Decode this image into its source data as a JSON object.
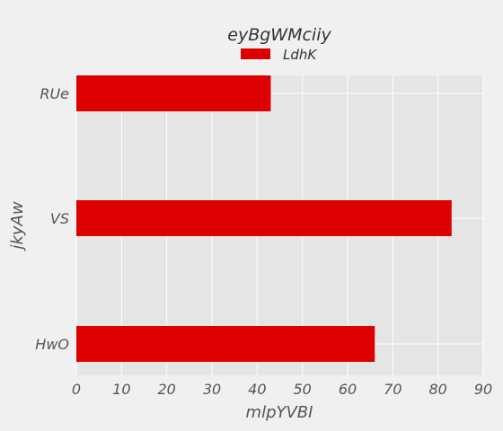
{
  "chart_data": {
    "type": "bar",
    "orientation": "horizontal",
    "title": "eyBgWMciiy",
    "xlabel": "mlpYVBI",
    "ylabel": "jkyAw",
    "categories": [
      "RUe",
      "VS",
      "HwO"
    ],
    "series": [
      {
        "name": "LdhK",
        "values": [
          43,
          83,
          66
        ],
        "color": "#dc0000"
      }
    ],
    "xlim": [
      0,
      90
    ],
    "xticks": [
      0,
      10,
      20,
      30,
      40,
      50,
      60,
      70,
      80,
      90
    ],
    "grid": true,
    "legend_position": "top-center",
    "plot_background": "#e5e5e5",
    "figure_background": "#f0f0f0",
    "grid_color": "#ffffff"
  }
}
